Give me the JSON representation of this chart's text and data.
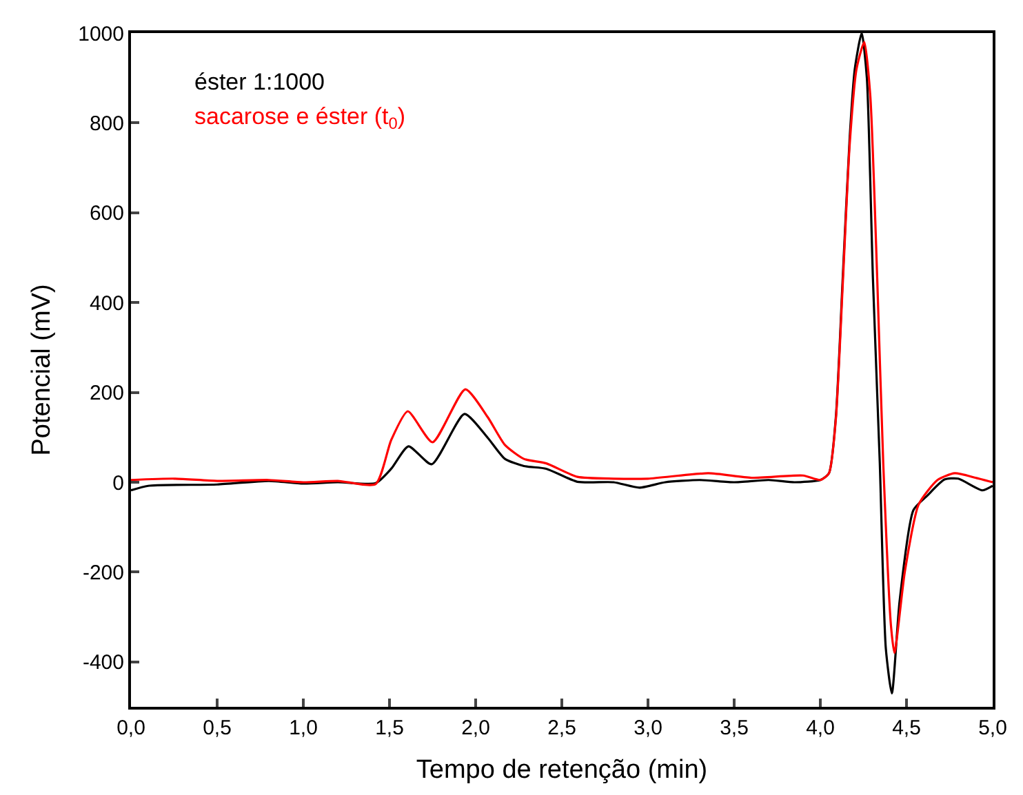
{
  "chart_data": {
    "type": "line",
    "xlabel": "Tempo de retenção (min)",
    "ylabel": "Potencial (mV)",
    "xlim": [
      0,
      5
    ],
    "xticks": [
      {
        "value": 0,
        "label": "0,0"
      },
      {
        "value": 0.5,
        "label": "0,5"
      },
      {
        "value": 1,
        "label": "1,0"
      },
      {
        "value": 1.5,
        "label": "1,5"
      },
      {
        "value": 2,
        "label": "2,0"
      },
      {
        "value": 2.5,
        "label": "2,5"
      },
      {
        "value": 3,
        "label": "3,0"
      },
      {
        "value": 3.5,
        "label": "3,5"
      },
      {
        "value": 4,
        "label": "4,0"
      },
      {
        "value": 4.5,
        "label": "4,5"
      },
      {
        "value": 5,
        "label": "5,0"
      }
    ],
    "ylim": [
      -500,
      1000
    ],
    "yticks": [
      -400,
      -200,
      0,
      200,
      400,
      600,
      800,
      1000
    ],
    "legend": "top left",
    "marker": "none",
    "line_style": "solid",
    "series": [
      {
        "name": "éster 1:1000",
        "color": "#000000",
        "x": [
          0.0,
          0.1,
          0.5,
          0.8,
          1.0,
          1.2,
          1.42,
          1.51,
          1.61,
          1.745,
          1.935,
          2.07,
          2.17,
          2.28,
          2.41,
          2.59,
          2.8,
          2.95,
          3.1,
          3.3,
          3.5,
          3.7,
          3.85,
          4.0,
          4.05,
          4.09,
          4.13,
          4.17,
          4.2,
          4.24,
          4.27,
          4.305,
          4.345,
          4.38,
          4.415,
          4.46,
          4.54,
          4.62,
          4.72,
          4.8,
          4.94,
          5.0
        ],
        "values": [
          -18,
          -8,
          -5,
          3,
          -3,
          0,
          -2,
          30,
          80,
          40,
          152,
          99,
          52,
          36,
          30,
          1,
          0,
          -12,
          0,
          5,
          0,
          5,
          0,
          5,
          20,
          145,
          455,
          765,
          920,
          1000,
          900,
          455,
          43,
          -370,
          -470,
          -265,
          -62,
          -30,
          6,
          8,
          -18,
          -8
        ]
      },
      {
        "name": "sacarose e éster (t$_{0}$)",
        "color": "#ff0000",
        "x": [
          0.0,
          0.25,
          0.5,
          0.8,
          1.0,
          1.2,
          1.42,
          1.51,
          1.606,
          1.75,
          1.94,
          2.07,
          2.17,
          2.28,
          2.41,
          2.59,
          2.8,
          3.0,
          3.35,
          3.6,
          3.9,
          4.0,
          4.05,
          4.09,
          4.13,
          4.17,
          4.21,
          4.255,
          4.29,
          4.33,
          4.365,
          4.41,
          4.43,
          4.49,
          4.57,
          4.68,
          4.78,
          4.9,
          5.0
        ],
        "values": [
          5,
          8,
          3,
          5,
          0,
          3,
          -4,
          94,
          158,
          89,
          207,
          145,
          83,
          52,
          42,
          12,
          8,
          8,
          20,
          10,
          15,
          5,
          20,
          140,
          440,
          750,
          920,
          980,
          860,
          455,
          43,
          -320,
          -380,
          -200,
          -50,
          5,
          20,
          10,
          0
        ]
      }
    ]
  }
}
